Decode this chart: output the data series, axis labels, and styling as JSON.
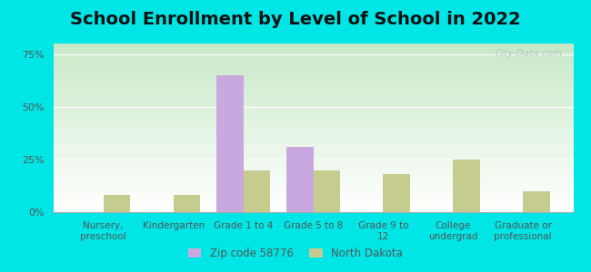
{
  "title": "School Enrollment by Level of School in 2022",
  "categories": [
    "Nursery,\npreschool",
    "Kindergarten",
    "Grade 1 to 4",
    "Grade 5 to 8",
    "Grade 9 to\n12",
    "College\nundergrad",
    "Graduate or\nprofessional"
  ],
  "zip_values": [
    0.0,
    0.0,
    65.0,
    31.0,
    0.0,
    0.0,
    0.0
  ],
  "nd_values": [
    8.0,
    8.0,
    20.0,
    20.0,
    18.0,
    25.0,
    10.0
  ],
  "zip_color": "#c9a8e0",
  "nd_color": "#c5cc8e",
  "zip_label": "Zip code 58776",
  "nd_label": "North Dakota",
  "ylim": [
    0,
    80
  ],
  "yticks": [
    0,
    25,
    50,
    75
  ],
  "ytick_labels": [
    "0%",
    "25%",
    "50%",
    "75%"
  ],
  "bg_outer": "#00e5e5",
  "bg_plot_bottom": "#c8e8c8",
  "bg_plot_top": "#ffffff",
  "title_fontsize": 14,
  "bar_width": 0.38,
  "watermark": "City-Data.com",
  "tick_label_color": "#555555",
  "axis_label_color": "#555555"
}
